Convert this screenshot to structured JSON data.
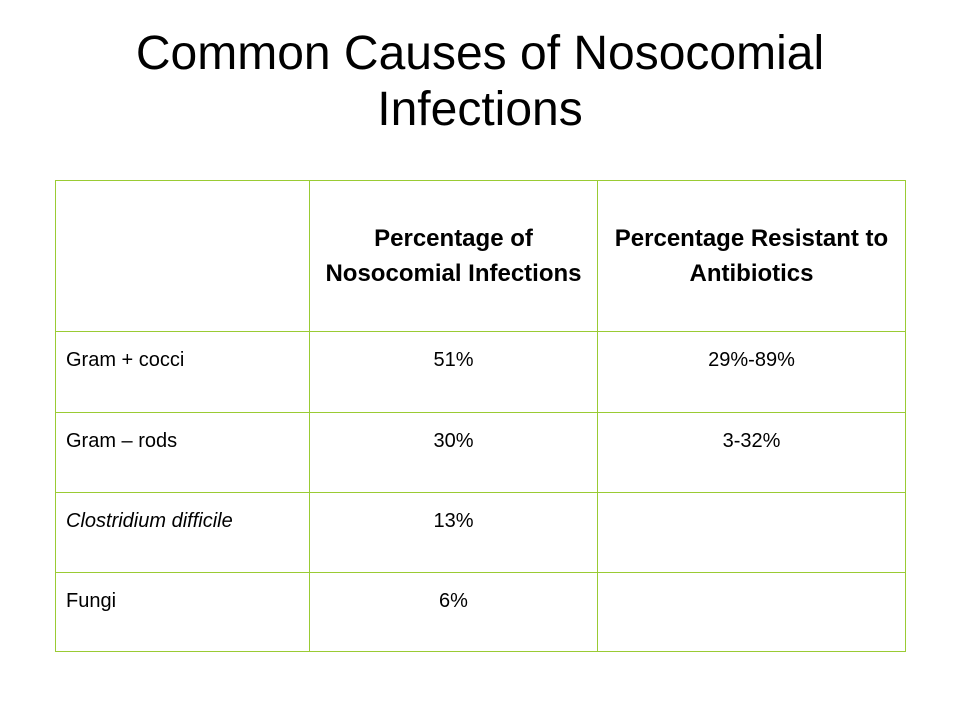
{
  "slide": {
    "title": "Common Causes of Nosocomial Infections"
  },
  "table": {
    "headers": [
      "",
      "Percentage of Nosocomial Infections",
      "Percentage Resistant to Antibiotics"
    ],
    "rows": [
      {
        "organism": "Gram + cocci",
        "percent_infections": "51%",
        "percent_resistant": "29%-89%",
        "italic": false
      },
      {
        "organism": "Gram – rods",
        "percent_infections": "30%",
        "percent_resistant": "3-32%",
        "italic": false
      },
      {
        "organism": "Clostridium difficile",
        "percent_infections": "13%",
        "percent_resistant": "",
        "italic": true
      },
      {
        "organism": "Fungi",
        "percent_infections": "6%",
        "percent_resistant": "",
        "italic": false
      }
    ],
    "border_color": "#9acb34"
  }
}
